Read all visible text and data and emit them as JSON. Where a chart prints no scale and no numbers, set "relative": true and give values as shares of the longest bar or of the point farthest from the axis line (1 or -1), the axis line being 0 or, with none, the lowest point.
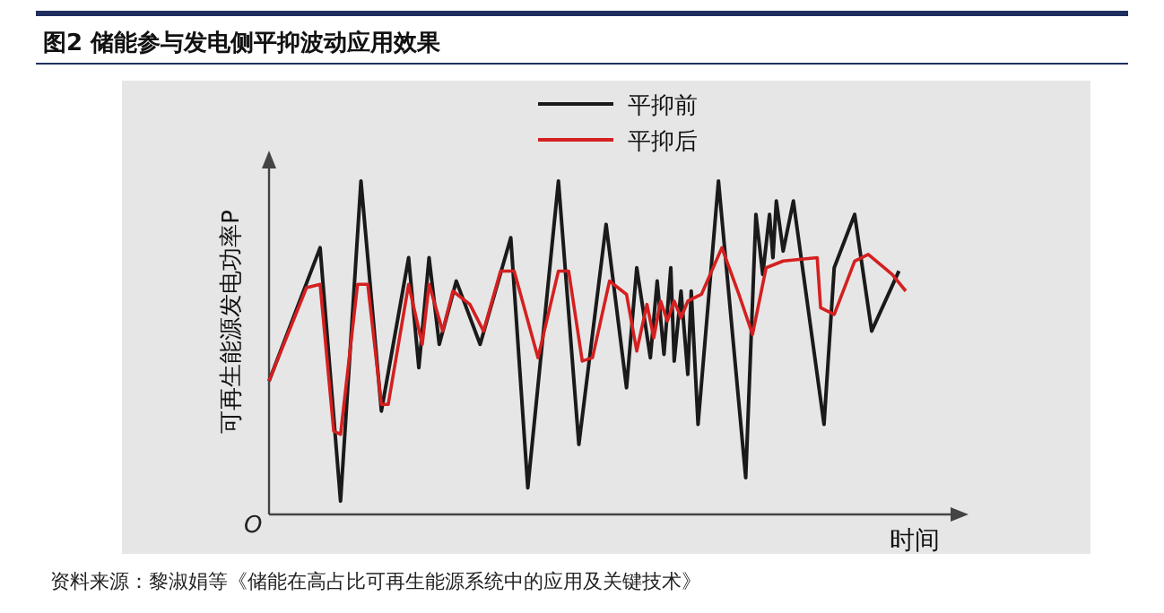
{
  "chart_data": {
    "type": "line",
    "title": "图2  储能参与发电侧平抑波动应用效果",
    "xlabel": "时间",
    "ylabel": "可再生能源发电功率P",
    "relative": true,
    "legend": "top",
    "annotations": [
      "O",
      "资料来源：黎淑娟等《储能在高占比可再生能源系统中的应用及关键技术》"
    ],
    "categories": [
      null,
      null,
      null,
      null,
      null,
      null,
      null,
      null,
      null,
      null,
      null,
      null,
      null,
      null,
      null,
      null,
      null,
      null,
      null,
      null,
      null,
      null,
      null,
      null,
      null,
      null,
      null,
      null,
      null,
      null,
      null,
      null,
      null,
      null,
      null,
      null,
      null,
      null,
      null,
      null,
      null,
      null,
      null,
      null,
      null,
      null,
      null,
      null,
      null,
      null,
      null,
      null,
      null,
      null,
      null,
      null,
      null,
      null,
      null,
      null,
      null,
      null,
      null,
      null,
      null,
      null,
      null,
      null,
      null,
      null,
      null,
      null,
      null,
      null,
      null,
      null,
      null,
      null,
      null,
      null,
      null,
      null,
      null,
      null,
      null,
      null,
      null,
      null,
      null,
      null,
      null,
      null,
      null,
      null,
      null,
      null,
      null,
      null,
      null,
      null,
      null,
      null,
      null,
      null,
      null,
      null,
      null,
      null,
      null,
      null,
      null,
      null,
      null,
      null,
      null,
      null,
      null,
      null,
      null,
      null,
      null,
      null,
      null,
      null,
      null,
      null,
      null,
      null,
      null,
      null,
      null,
      null,
      null,
      null,
      null,
      null,
      null,
      null,
      null,
      null,
      null,
      null,
      null,
      null,
      null,
      null,
      null,
      null,
      null,
      null,
      null,
      null,
      null,
      null,
      null,
      null,
      null,
      null,
      null,
      null,
      null,
      null,
      null,
      null,
      null,
      null,
      null,
      null,
      null,
      null,
      null,
      null,
      null,
      null,
      null,
      null,
      null,
      null,
      null,
      null,
      null,
      null,
      null,
      null,
      null,
      null,
      null,
      null
    ],
    "series": [
      {
        "name": "平抑前",
        "color": "#1a1a1a",
        "values": [
          0.4,
          null,
          null,
          null,
          null,
          null,
          null,
          null,
          null,
          null,
          null,
          null,
          null,
          null,
          null,
          0.8,
          null,
          null,
          null,
          null,
          null,
          0.04,
          null,
          null,
          null,
          null,
          null,
          1.0,
          null,
          null,
          null,
          null,
          null,
          0.31,
          null,
          null,
          null,
          null,
          null,
          null,
          null,
          0.77,
          null,
          null,
          0.44,
          null,
          null,
          0.77,
          null,
          null,
          0.51,
          null,
          null,
          null,
          null,
          0.7,
          null,
          null,
          null,
          null,
          null,
          null,
          0.51,
          null,
          null,
          null,
          null,
          null,
          null,
          null,
          null,
          0.83,
          null,
          null,
          null,
          null,
          0.08,
          null,
          null,
          null,
          null,
          null,
          null,
          null,
          null,
          1.0,
          null,
          null,
          null,
          null,
          null,
          0.21,
          null,
          null,
          null,
          null,
          null,
          null,
          null,
          0.87,
          null,
          null,
          null,
          null,
          null,
          0.38,
          null,
          null,
          0.74,
          null,
          null,
          null,
          0.47,
          null,
          0.7,
          null,
          0.48,
          null,
          0.74,
          0.46,
          null,
          0.67,
          null,
          0.42,
          0.67,
          null,
          0.27,
          null,
          null,
          null,
          null,
          null,
          1.0,
          null,
          null,
          null,
          null,
          null,
          null,
          null,
          0.11,
          null,
          null,
          0.9,
          null,
          0.72,
          null,
          0.9,
          0.77,
          0.94,
          null,
          0.79,
          null,
          null,
          0.94,
          null,
          null,
          null,
          null,
          null,
          null,
          null,
          null,
          0.27,
          null,
          null,
          0.74,
          null,
          null,
          null,
          null,
          null,
          0.9,
          null,
          null,
          null,
          null,
          0.55,
          null,
          null,
          null,
          null,
          null,
          null,
          null,
          0.73,
          null,
          null
        ]
      },
      {
        "name": "平抑后",
        "color": "#d42020",
        "values": [
          0.4,
          null,
          null,
          null,
          null,
          null,
          null,
          null,
          null,
          null,
          null,
          0.68,
          null,
          null,
          null,
          0.69,
          null,
          null,
          null,
          0.25,
          null,
          0.24,
          null,
          null,
          null,
          null,
          0.69,
          null,
          null,
          0.69,
          null,
          null,
          null,
          0.33,
          null,
          0.33,
          null,
          null,
          null,
          null,
          null,
          0.69,
          null,
          null,
          null,
          0.51,
          null,
          0.69,
          null,
          null,
          null,
          0.55,
          null,
          null,
          0.67,
          null,
          null,
          null,
          null,
          0.63,
          null,
          null,
          null,
          0.55,
          null,
          null,
          null,
          null,
          0.73,
          null,
          null,
          null,
          0.73,
          null,
          null,
          null,
          null,
          null,
          null,
          0.47,
          null,
          null,
          null,
          null,
          null,
          0.73,
          null,
          null,
          0.73,
          null,
          null,
          null,
          0.46,
          null,
          null,
          0.47,
          null,
          null,
          null,
          null,
          0.7,
          null,
          null,
          null,
          null,
          0.66,
          null,
          null,
          0.49,
          null,
          null,
          0.63,
          null,
          0.53,
          null,
          0.64,
          null,
          0.58,
          null,
          0.64,
          null,
          0.59,
          null,
          0.64,
          null,
          null,
          null,
          0.66,
          null,
          null,
          null,
          null,
          null,
          0.8,
          null,
          null,
          null,
          null,
          0.66,
          null,
          null,
          null,
          0.54,
          null,
          null,
          null,
          0.74,
          null,
          null,
          null,
          null,
          0.76,
          null,
          null,
          null,
          null,
          null,
          null,
          null,
          null,
          null,
          0.77,
          0.62,
          null,
          null,
          null,
          0.6,
          null,
          null,
          null,
          null,
          null,
          0.76,
          null,
          null,
          null,
          0.78,
          null,
          null,
          null,
          null,
          null,
          null,
          0.72,
          null,
          null,
          null,
          0.67
        ]
      }
    ]
  }
}
